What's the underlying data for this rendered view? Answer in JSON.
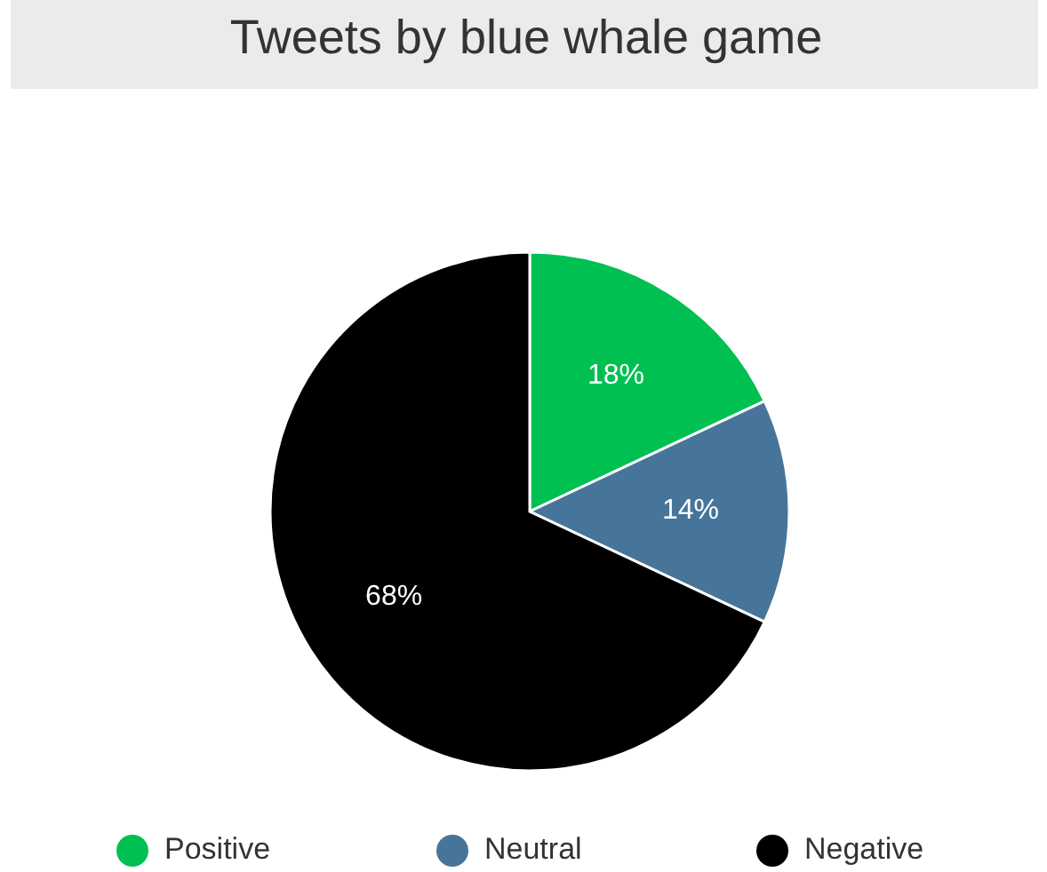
{
  "chart_data": {
    "type": "pie",
    "title": "Tweets by blue whale game",
    "categories": [
      "Positive",
      "Neutral",
      "Negative"
    ],
    "values": [
      18,
      14,
      68
    ],
    "value_labels": [
      "18%",
      "14%",
      "68%"
    ],
    "colors": [
      "#00c052",
      "#467599",
      "#000000"
    ],
    "legend": "bottom"
  }
}
